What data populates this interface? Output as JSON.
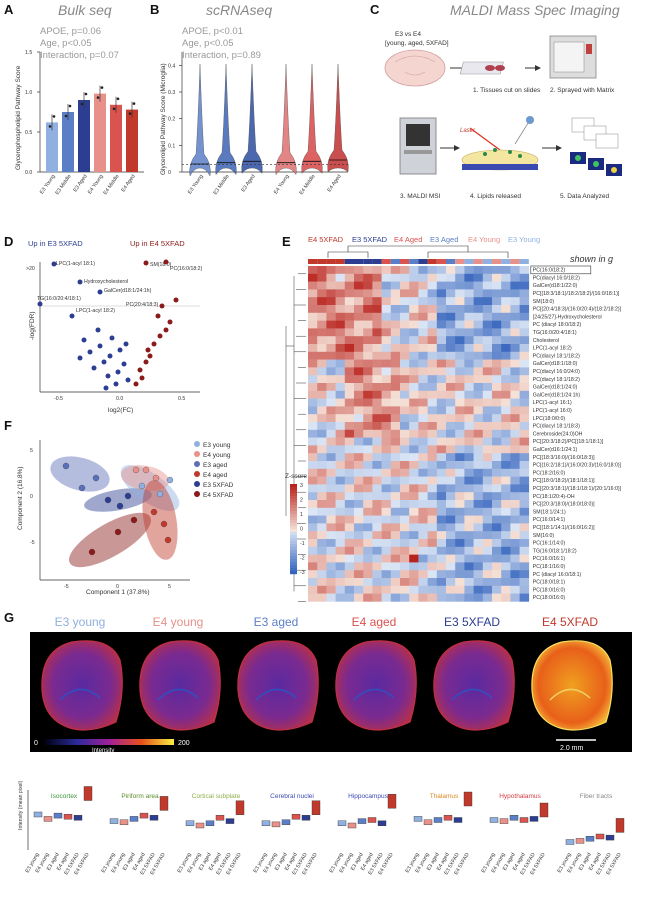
{
  "panels": {
    "A": {
      "letter": "A",
      "title": "Bulk seq",
      "ylabel": "Glycerophospholipid Pathway Score",
      "stats": [
        "APOE, p=0.06",
        "Age, p<0.05",
        "Interaction, p=0.07"
      ],
      "yticks": [
        "0.0",
        "0.5",
        "1.0",
        "1.5"
      ]
    },
    "B": {
      "letter": "B",
      "title": "scRNAseq",
      "ylabel": "Glycerolipid Pathway Score (Microglia)",
      "stats": [
        "APOE, p<0.01",
        "Age, p<0.05",
        "Interaction, p=0.89"
      ],
      "yticks": [
        "0",
        "0.1",
        "0.2",
        "0.3",
        "0.4"
      ]
    },
    "C": {
      "letter": "C",
      "title": "MALDI Mass Spec Imaging",
      "design_line1": "E3 vs E4",
      "design_line2": "[young, aged, 5XFAD]",
      "steps": [
        "1. Tissues cut on slides",
        "2. Sprayed with Matrix",
        "3. MALDI MSI",
        "4. Lipids released",
        "5. Data Analyzed"
      ],
      "laser": "Laser"
    },
    "D": {
      "letter": "D",
      "left_label": "Up in E3 5XFAD",
      "right_label": "Up in E4 5XFAD",
      "xlabel": "log2(FC)",
      "ylabel": "-log(FDR)",
      "xticks": [
        "-0.5",
        "0.0",
        "0.5"
      ],
      "ytick_top": ">20",
      "labels": [
        "LPC(1-acyl 18:1)",
        "SM(18:0)",
        "PC(16:0/18:2)",
        "Hydroxycholesterol",
        "GalCer(d18:1/24:1h)",
        "TG(16:0/20:4/18:1)",
        "PC(20:4/18:3)",
        "LPC(1-acyl 18:2)"
      ]
    },
    "E": {
      "letter": "E",
      "shown_in": "shown in g",
      "zscore": "Z-score",
      "zticks": [
        "3",
        "2",
        "1",
        "0",
        "-1",
        "-2",
        "-3"
      ],
      "header": [
        "E4 5XFAD",
        "E3 5XFAD",
        "E4 Aged",
        "E3 Aged",
        "E4 Young",
        "E3 Young"
      ],
      "header_colors": [
        "#c0392b",
        "#2c3e91",
        "#d9534f",
        "#5b7fc7",
        "#e8908a",
        "#8fb0e0"
      ],
      "rows": [
        "PC(16:0/18:2)",
        "PC(diacyl 16:0/18:2)",
        "GalCer(d18:1/22:0)",
        "PC[(18:3/18:1)/18:2/18:2)/(16:0/18:1)]",
        "SM(18:0)",
        "PC[(20:4/18:3)/(16:0/20:4)/(18:2/18:2)]",
        "[24/25/27]-Hydroxycholesterol",
        "PC (diacyl 18:0/18:2)",
        "TG(16:0/20:4/18:1)",
        "Cholesterol",
        "LPC(1-acyl 18:2)",
        "PC(diacyl 18:1/18:2)",
        "GalCer(d18:1/18:0)",
        "PC(diacyl 16:0/24:0)",
        "PC(diacyl 18:1/18:2)",
        "GalCer(d18:1/24:0)",
        "GalCer(d18:1/24:1h)",
        "LPC(1-acyl 16:1)",
        "LPC(1-acyl 16:0)",
        "LPC(18:0/0:0)",
        "PC(diacyl 18:1/18:3)",
        "Cerebroside(24:0)OH",
        "PC[(20:3/18:2)/PC[(18:1/18:1)]",
        "GalCer(d16:1/24:1)",
        "PC[(18:3/16:0)/(16:0/18:3)]",
        "PC[(16:2/18:1)/(16:0/20:3)/(16:0/18:0)]",
        "PC(18:2/16:0)",
        "PC[(18:0/18:2)/(18:1/18:1)]",
        "PC[(20:3/18:1)/(18:1/18:1)/(20:1/16:0)]",
        "PC(18:1/20:4)-OH",
        "PC[(20:3/18:0)/(18:0/18:0)]",
        "SM(18:1/24:1)",
        "PC(16:0/14:1)",
        "PC[(18:1/14:1)/(16:0/16:2)]",
        "SM(16:0)",
        "PC(16:1/14:0)",
        "TG(16:0/18:1/18:2)",
        "PC(16:0/16:1)",
        "PC(18:1/16:0)",
        "PC (diacyl 16:0/18:1)",
        "PC(18:0/18:1)",
        "PC(18:0/16:0)",
        "PC(18:0/16:0)"
      ]
    },
    "F": {
      "letter": "F",
      "xlabel": "Component 1 (37.8%)",
      "ylabel": "Component 2 (16.8%)",
      "xticks": [
        "-5",
        "0",
        "5"
      ],
      "yticks": [
        "5",
        "0",
        "-5"
      ],
      "legend": [
        {
          "label": "E3 young",
          "color": "#8fb0e0"
        },
        {
          "label": "E4 young",
          "color": "#e8908a"
        },
        {
          "label": "E3 aged",
          "color": "#5b6fb8"
        },
        {
          "label": "E4 aged",
          "color": "#c0392b"
        },
        {
          "label": "E3 5XFAD",
          "color": "#2c3e91"
        },
        {
          "label": "E4 5XFAD",
          "color": "#8b1a1a"
        }
      ]
    },
    "G": {
      "letter": "G",
      "conditions": [
        "E3 young",
        "E4 young",
        "E3 aged",
        "E4 aged",
        "E3 5XFAD",
        "E4 5XFAD"
      ],
      "condition_colors": [
        "#8fb0e0",
        "#e8908a",
        "#5b7fc7",
        "#d9534f",
        "#2c3e91",
        "#c0392b"
      ],
      "cbar_min": "0",
      "cbar_max": "200",
      "cbar_label": "Intensity",
      "scale_bar": "2.0 mm",
      "ylabel": "Intensity (mean pixel)",
      "regions": [
        {
          "name": "Isocortex",
          "color": "#3a9a3a"
        },
        {
          "name": "Piriform area",
          "color": "#5a8a2a"
        },
        {
          "name": "Cortical subplate",
          "color": "#8ab04a"
        },
        {
          "name": "Cerebral nuclei",
          "color": "#3a4ab0"
        },
        {
          "name": "Hippocampus",
          "color": "#3a4ab0"
        },
        {
          "name": "Thalamus",
          "color": "#d98a20"
        },
        {
          "name": "Hypothalamus",
          "color": "#d04040"
        },
        {
          "name": "Fiber tracts",
          "color": "#888888"
        }
      ],
      "box_labels": [
        "E3 young",
        "E4 young",
        "E3 aged",
        "E4 aged",
        "E3 5XFAD",
        "E4 5XFAD"
      ]
    }
  },
  "chart_data": [
    {
      "type": "bar",
      "panel": "A",
      "title": "Bulk seq",
      "ylabel": "Glycerophospholipid Pathway Score",
      "categories": [
        "E3 Young",
        "E3 Middle",
        "E3 Aged",
        "E4 Young",
        "E4 Middle",
        "E4 Aged"
      ],
      "values": [
        0.62,
        0.75,
        0.9,
        0.98,
        0.84,
        0.78
      ],
      "ylim": [
        0,
        1.5
      ]
    },
    {
      "type": "violin",
      "panel": "B",
      "title": "scRNAseq",
      "ylabel": "Glycerolipid Pathway Score (Microglia)",
      "categories": [
        "E3 Young",
        "E3 Middle",
        "E3 Aged",
        "E4 Young",
        "E4 Middle",
        "E4 Aged"
      ],
      "medians": [
        0.03,
        0.035,
        0.04,
        0.035,
        0.04,
        0.045
      ],
      "ylim": [
        0,
        0.45
      ]
    }
  ]
}
